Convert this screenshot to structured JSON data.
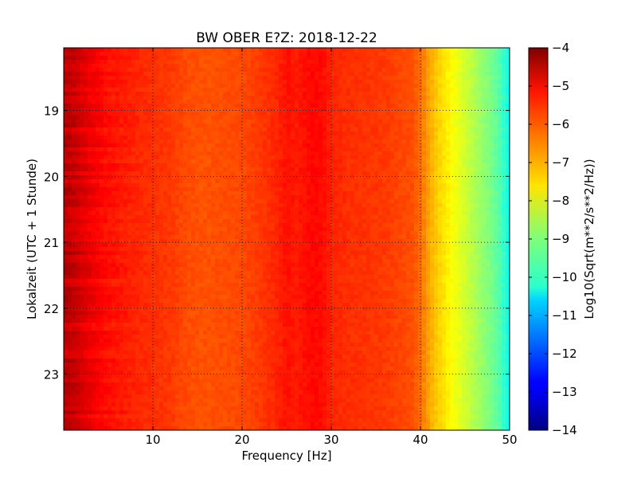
{
  "chart_data": {
    "type": "heatmap",
    "title": "BW OBER E?Z: 2018-12-22",
    "xlabel": "Frequency [Hz]",
    "ylabel": "Lokalzeit (UTC + 1 Stunde)",
    "xlim": [
      0,
      50
    ],
    "ylim": [
      18.05,
      23.85
    ],
    "y_inverted": true,
    "x_ticks": [
      10,
      20,
      30,
      40,
      50
    ],
    "y_ticks": [
      19,
      20,
      21,
      22,
      23
    ],
    "grid": true,
    "colormap": "jet",
    "colorbar": {
      "label": "Log10(Sqrt(m**2/s**2/Hz))",
      "min": -14,
      "max": -4,
      "ticks": [
        -4,
        -5,
        -6,
        -7,
        -8,
        -9,
        -10,
        -11,
        -12,
        -13,
        -14
      ]
    },
    "spectrum_profile": {
      "frequency_hz": [
        0,
        1,
        2,
        3,
        5,
        8,
        10,
        12,
        14,
        16,
        18,
        20,
        22,
        24,
        25,
        26,
        28,
        29,
        30,
        32,
        34,
        36,
        38,
        39,
        40,
        41,
        42,
        43,
        44,
        45,
        46,
        47,
        48,
        49,
        50
      ],
      "log10_amplitude": [
        -4.6,
        -4.7,
        -4.9,
        -5.1,
        -5.4,
        -5.6,
        -5.7,
        -5.8,
        -6.0,
        -6.05,
        -6.0,
        -5.95,
        -5.8,
        -5.6,
        -5.4,
        -5.5,
        -5.3,
        -5.35,
        -5.6,
        -5.7,
        -5.75,
        -5.8,
        -5.95,
        -6.0,
        -6.3,
        -6.9,
        -7.3,
        -7.6,
        -7.9,
        -8.2,
        -8.5,
        -8.8,
        -9.1,
        -9.5,
        -10.2
      ]
    }
  }
}
